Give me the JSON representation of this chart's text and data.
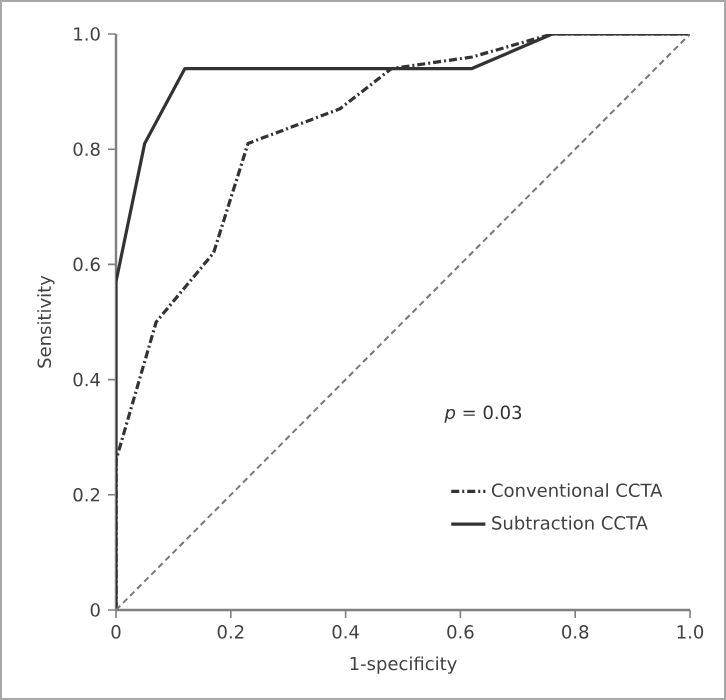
{
  "chart_data": {
    "type": "line",
    "xlabel": "1-specificity",
    "ylabel": "Sensitivity",
    "annotations": [
      "*p* = 0.03"
    ],
    "series": [
      {
        "name": "Conventional CCTA",
        "color": "#333333",
        "line_style": "dashdot",
        "x": [
          0,
          0,
          0.07,
          0.17,
          0.23,
          0.39,
          0.48,
          0.62,
          0.76,
          1.0
        ],
        "values": [
          0,
          0.26,
          0.5,
          0.62,
          0.81,
          0.87,
          0.94,
          0.96,
          1.0,
          1.0
        ]
      },
      {
        "name": "Subtraction CCTA",
        "color": "#333333",
        "line_style": "solid",
        "x": [
          0,
          0,
          0.05,
          0.12,
          0.62,
          0.76,
          1.0
        ],
        "values": [
          0,
          0.57,
          0.81,
          0.94,
          0.94,
          1.0,
          1.0
        ]
      },
      {
        "color": "#777777",
        "line_style": "dashed",
        "x": [
          0,
          1.0
        ],
        "values": [
          0,
          1.0
        ]
      }
    ],
    "xlim": [
      0,
      1.0
    ],
    "ylim": [
      0,
      1.0
    ],
    "xticks": [
      0,
      0.2,
      0.4,
      0.6,
      0.8,
      {
        "value": 1,
        "label": "1.0"
      }
    ],
    "yticks": [
      0,
      0.2,
      0.4,
      0.6,
      0.8,
      {
        "value": 1,
        "label": "1.0"
      }
    ],
    "grid": false,
    "legend": "bottom right",
    "marker": "none"
  }
}
